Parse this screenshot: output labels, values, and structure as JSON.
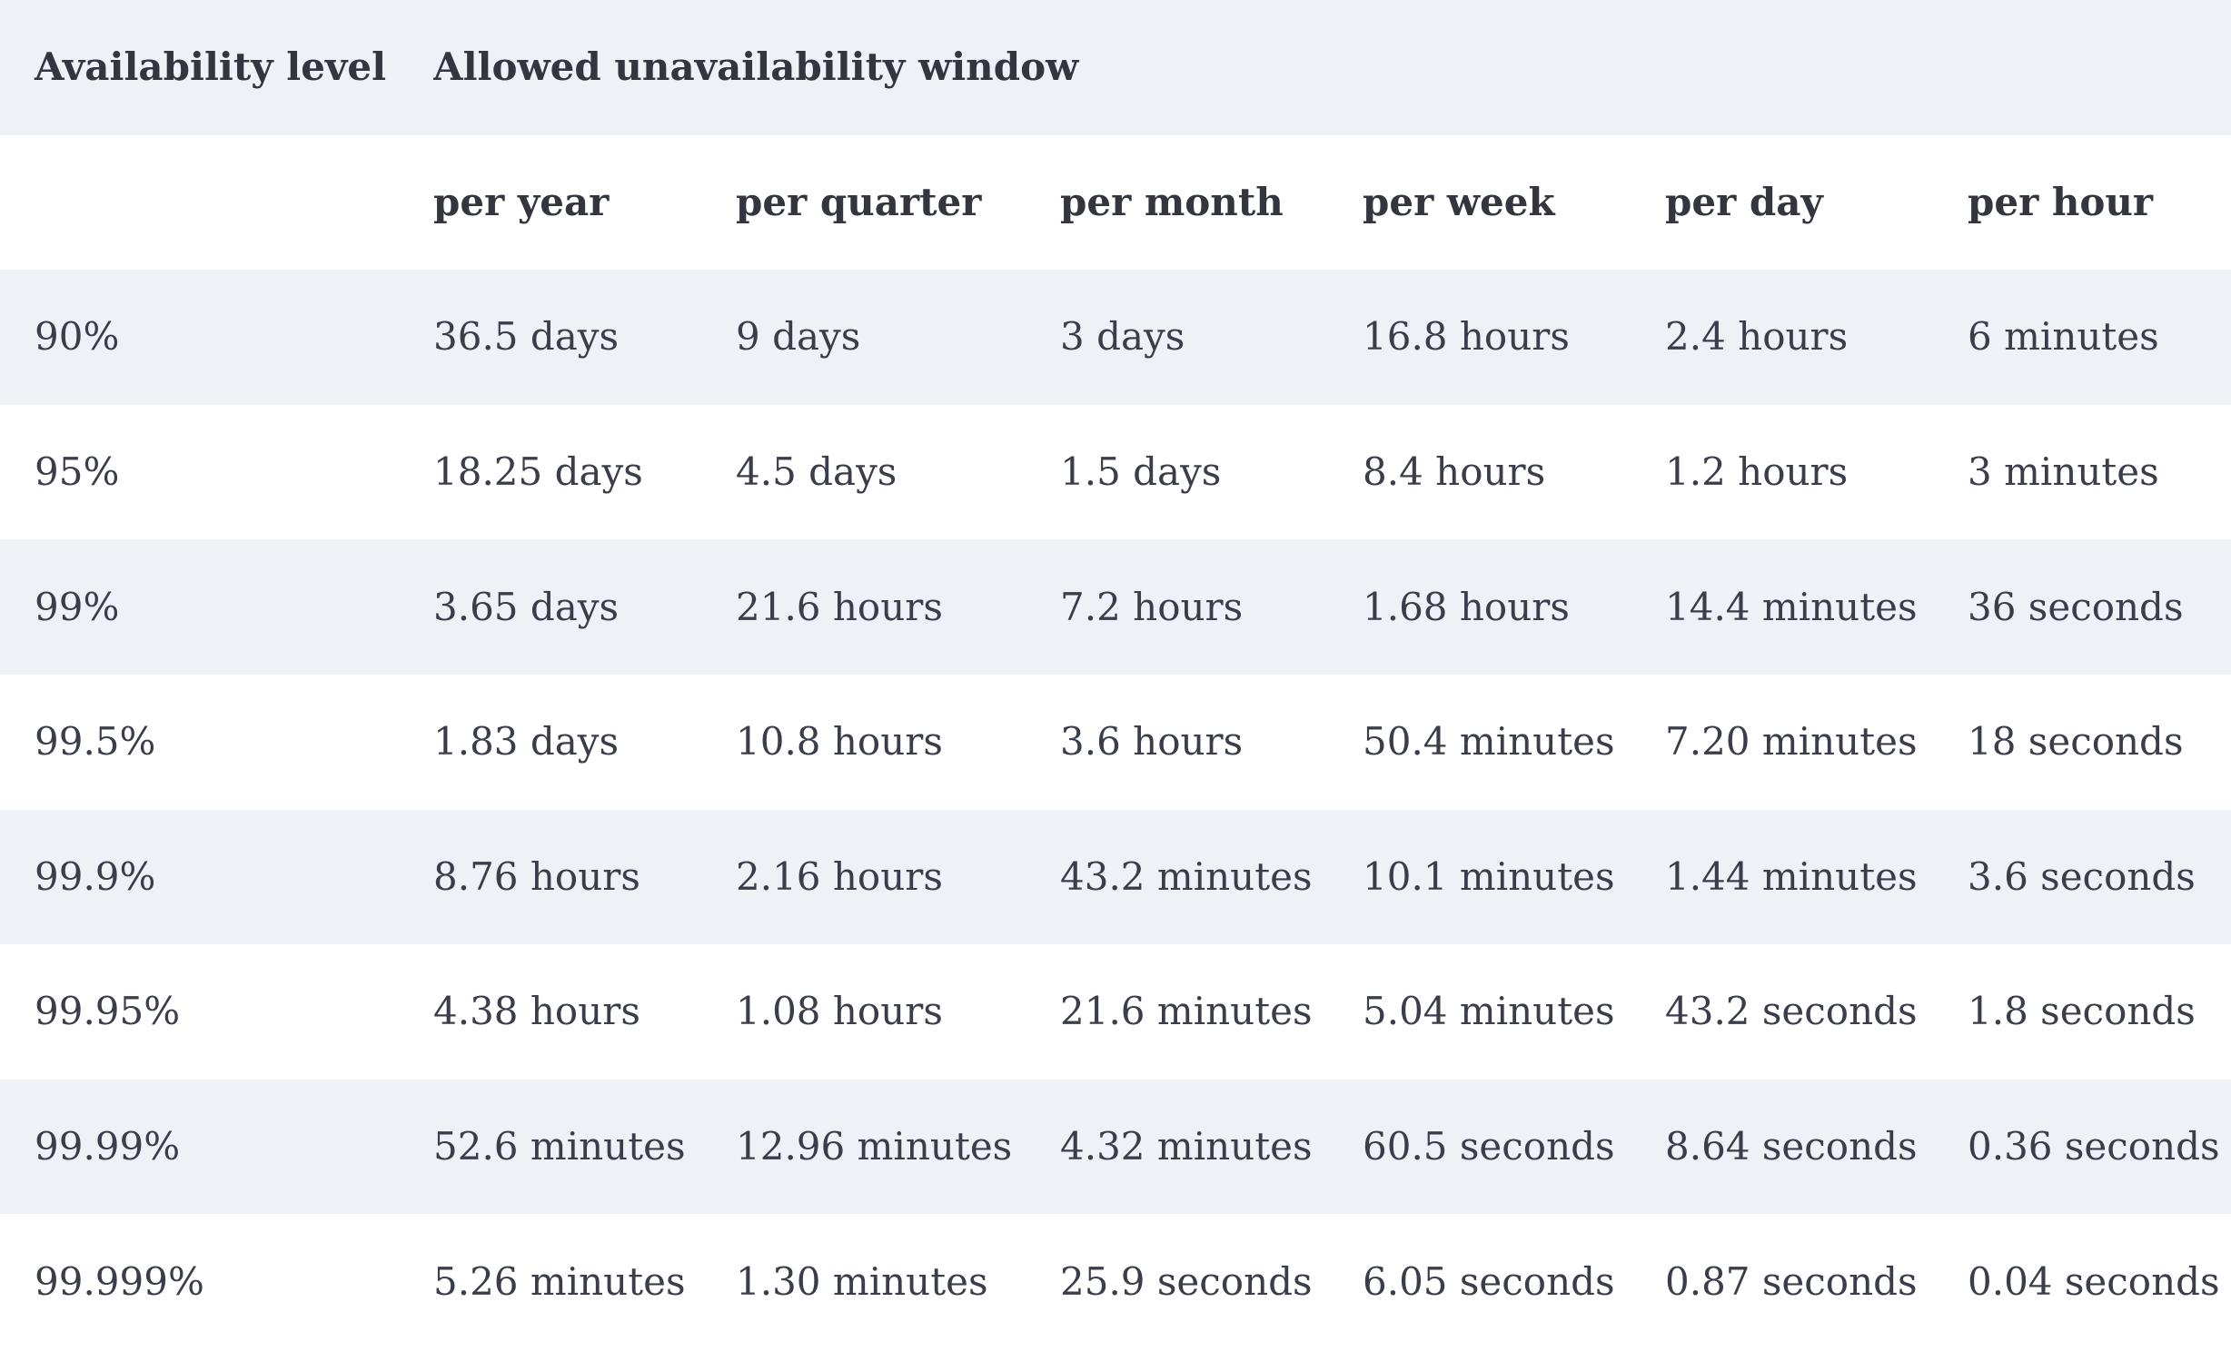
{
  "table": {
    "header": {
      "availability_level": "Availability level",
      "allowed_window": "Allowed unavailability window"
    },
    "subheader": {
      "blank": "",
      "per_year": "per year",
      "per_quarter": "per quarter",
      "per_month": "per month",
      "per_week": "per week",
      "per_day": "per day",
      "per_hour": "per hour"
    },
    "rows": [
      [
        "90%",
        "36.5 days",
        "9 days",
        "3 days",
        "16.8 hours",
        "2.4 hours",
        "6 minutes"
      ],
      [
        "95%",
        "18.25 days",
        "4.5 days",
        "1.5 days",
        "8.4 hours",
        "1.2 hours",
        "3 minutes"
      ],
      [
        "99%",
        "3.65 days",
        "21.6 hours",
        "7.2 hours",
        "1.68 hours",
        "14.4 minutes",
        "36 seconds"
      ],
      [
        "99.5%",
        "1.83 days",
        "10.8 hours",
        "3.6 hours",
        "50.4 minutes",
        "7.20 minutes",
        "18 seconds"
      ],
      [
        "99.9%",
        "8.76 hours",
        "2.16 hours",
        "43.2 minutes",
        "10.1 minutes",
        "1.44 minutes",
        "3.6 seconds"
      ],
      [
        "99.95%",
        "4.38 hours",
        "1.08 hours",
        "21.6 minutes",
        "5.04 minutes",
        "43.2 seconds",
        "1.8 seconds"
      ],
      [
        "99.99%",
        "52.6 minutes",
        "12.96 minutes",
        "4.32 minutes",
        "60.5 seconds",
        "8.64 seconds",
        "0.36 seconds"
      ],
      [
        "99.999%",
        "5.26 minutes",
        "1.30 minutes",
        "25.9 seconds",
        "6.05 seconds",
        "0.87 seconds",
        "0.04 seconds"
      ]
    ]
  },
  "colors": {
    "shaded_row_background": "#eef1f6",
    "text": "#3a3d4a"
  }
}
